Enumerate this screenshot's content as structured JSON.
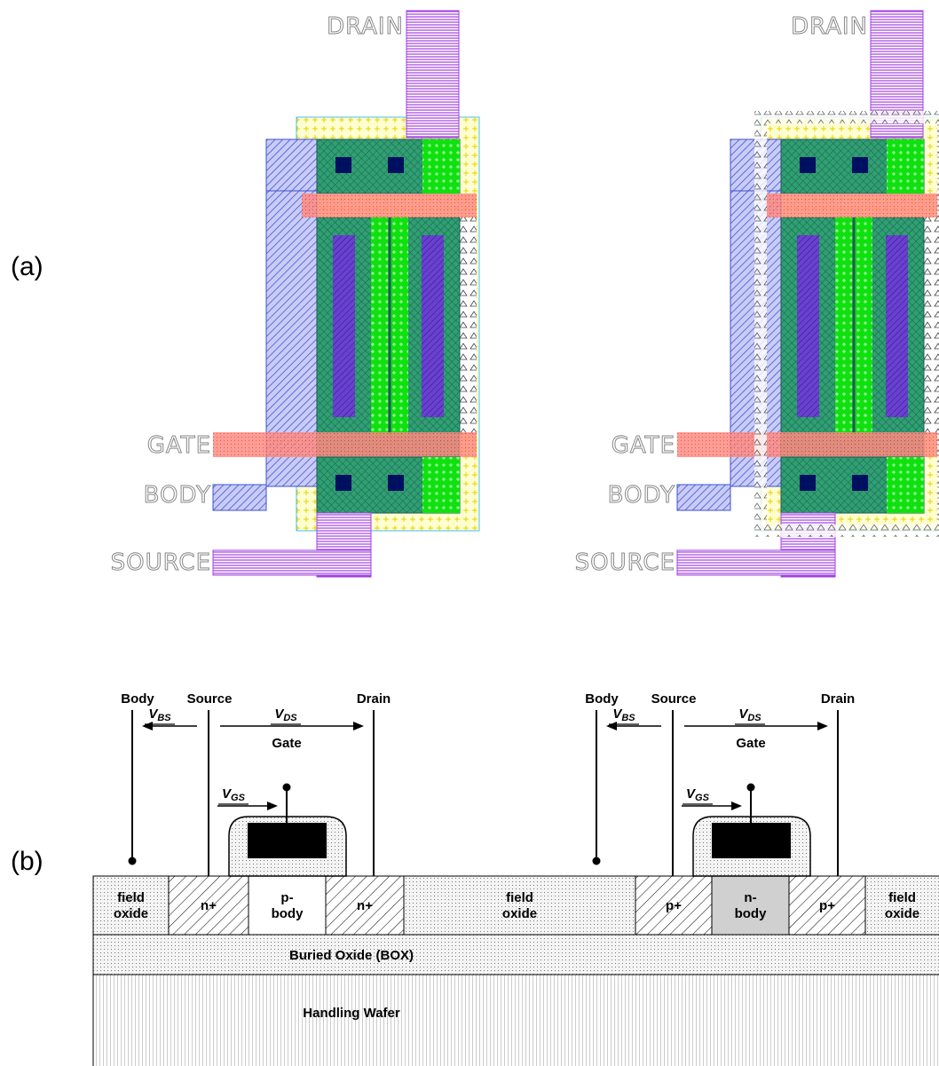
{
  "panel_labels": [
    "(a)",
    "(b)"
  ],
  "layouts": [
    {
      "drain": "DRAIN",
      "gate": "GATE",
      "body": "BODY",
      "source": "SOURCE"
    },
    {
      "drain": "DRAIN",
      "gate": "GATE",
      "body": "BODY",
      "source": "SOURCE"
    }
  ],
  "cross_section": {
    "devices": [
      {
        "body": "Body",
        "source": "Source",
        "drain": "Drain",
        "gate": "Gate",
        "v_bs": {
          "base": "V",
          "sub": "BS"
        },
        "v_ds": {
          "base": "V",
          "sub": "DS"
        },
        "v_gs": {
          "base": "V",
          "sub": "GS"
        }
      },
      {
        "body": "Body",
        "source": "Source",
        "drain": "Drain",
        "gate": "Gate",
        "v_bs": {
          "base": "V",
          "sub": "BS"
        },
        "v_ds": {
          "base": "V",
          "sub": "DS"
        },
        "v_gs": {
          "base": "V",
          "sub": "GS"
        }
      }
    ],
    "regions": [
      {
        "lines": [
          "field",
          "oxide"
        ]
      },
      {
        "lines": [
          "n+"
        ]
      },
      {
        "lines": [
          "p-",
          "body"
        ]
      },
      {
        "lines": [
          "n+"
        ]
      },
      {
        "lines": [
          "field",
          "oxide"
        ]
      },
      {
        "lines": [
          "p+"
        ]
      },
      {
        "lines": [
          "n-",
          "body"
        ]
      },
      {
        "lines": [
          "p+"
        ]
      },
      {
        "lines": [
          "field",
          "oxide"
        ]
      }
    ],
    "box": "Buried Oxide (BOX)",
    "wafer": "Handling Wafer"
  }
}
